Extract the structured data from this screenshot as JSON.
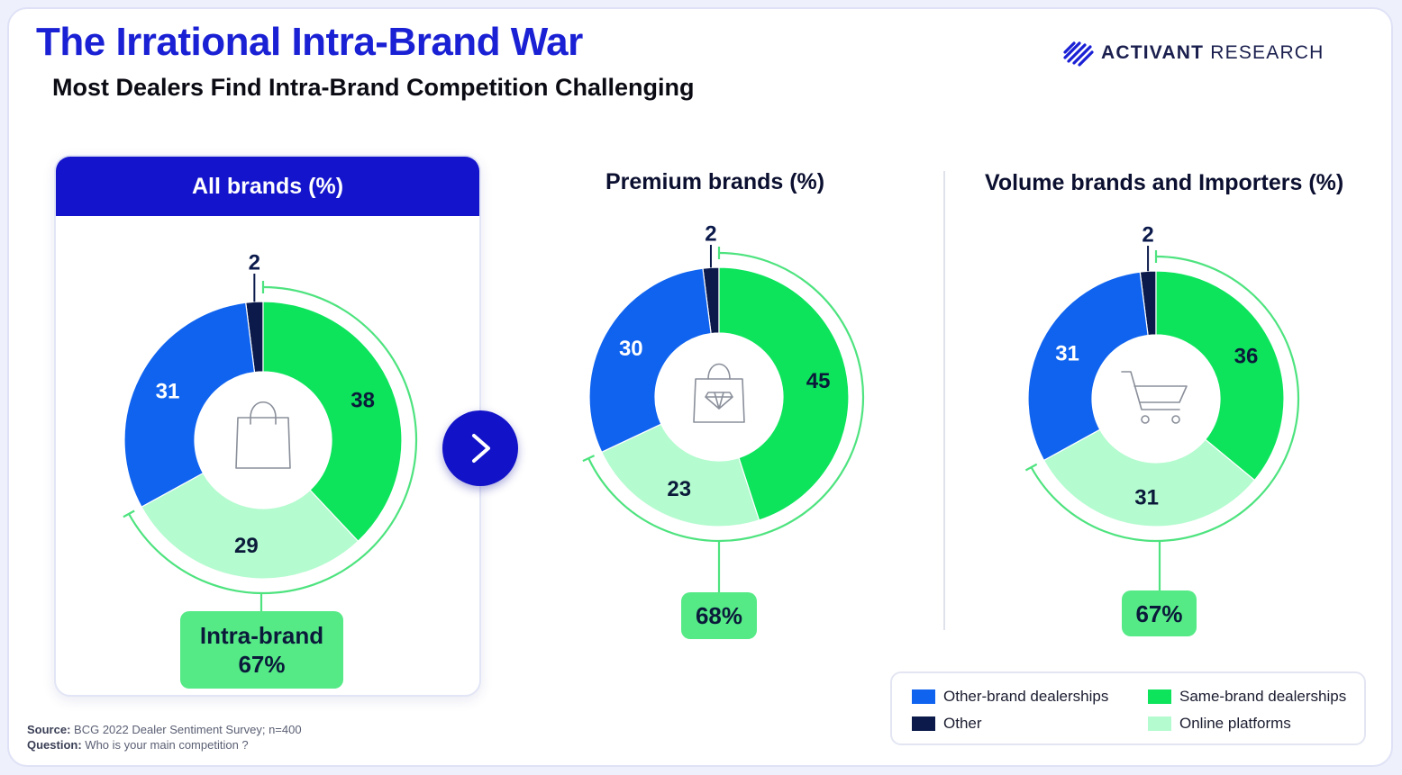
{
  "header": {
    "title": "The Irrational Intra-Brand War",
    "subtitle": "Most Dealers Find Intra-Brand Competition Challenging"
  },
  "logo": {
    "name_strong": "ACTIVANT",
    "name_rest": "RESEARCH"
  },
  "colors": {
    "other_brand": "#0f63ef",
    "other": "#0b1a4b",
    "same_brand": "#0ee35c",
    "online": "#b4fbcf",
    "accent": "#1414cc",
    "bracket": "#4ee37f"
  },
  "chart_data": [
    {
      "type": "pie",
      "title": "All brands (%)",
      "icon": "shopping-bag-icon",
      "slices": [
        {
          "label": "Other",
          "value": 2
        },
        {
          "label": "Same-brand dealerships",
          "value": 38
        },
        {
          "label": "Online platforms",
          "value": 29
        },
        {
          "label": "Other-brand dealerships",
          "value": 31
        }
      ],
      "callout": {
        "label": "Intra-brand",
        "value": "67%"
      }
    },
    {
      "type": "pie",
      "title": "Premium brands (%)",
      "icon": "diamond-bag-icon",
      "slices": [
        {
          "label": "Other",
          "value": 2
        },
        {
          "label": "Same-brand dealerships",
          "value": 45
        },
        {
          "label": "Online platforms",
          "value": 23
        },
        {
          "label": "Other-brand dealerships",
          "value": 30
        }
      ],
      "callout": {
        "label": "",
        "value": "68%"
      }
    },
    {
      "type": "pie",
      "title": "Volume brands and Importers (%)",
      "icon": "shopping-cart-icon",
      "slices": [
        {
          "label": "Other",
          "value": 2
        },
        {
          "label": "Same-brand dealerships",
          "value": 36
        },
        {
          "label": "Online platforms",
          "value": 31
        },
        {
          "label": "Other-brand dealerships",
          "value": 31
        }
      ],
      "callout": {
        "label": "",
        "value": "67%"
      }
    }
  ],
  "legend": [
    {
      "label": "Other-brand dealerships",
      "color": "#0f63ef"
    },
    {
      "label": "Same-brand dealerships",
      "color": "#0ee35c"
    },
    {
      "label": "Other",
      "color": "#0b1a4b"
    },
    {
      "label": "Online platforms",
      "color": "#b4fbcf"
    }
  ],
  "footer": {
    "source_label": "Source:",
    "source_text": "BCG 2022 Dealer Sentiment Survey; n=400",
    "question_label": "Question:",
    "question_text": "Who is your main competition ?"
  }
}
